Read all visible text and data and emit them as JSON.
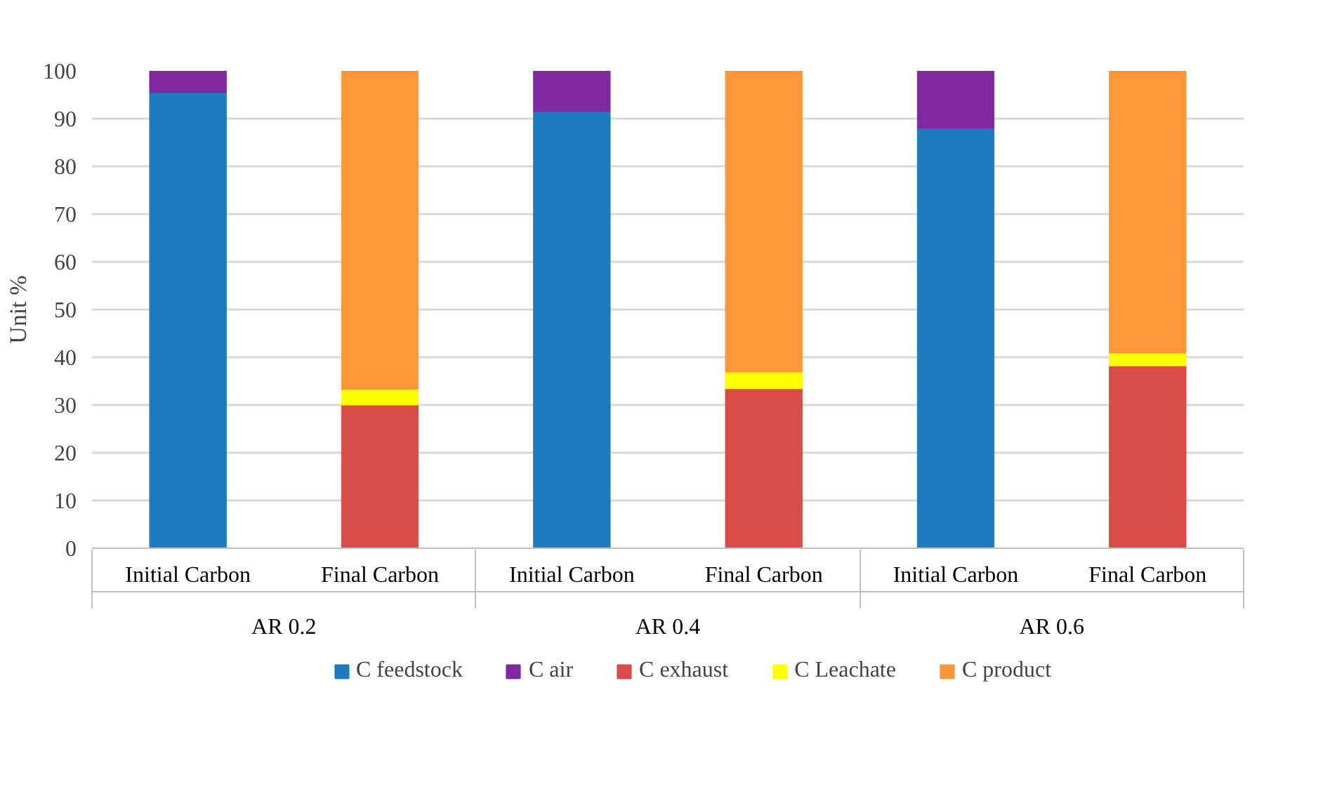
{
  "chart_data": {
    "type": "bar",
    "stacked": true,
    "ylabel": "Unit %",
    "categories": [
      "Initial Carbon",
      "Final Carbon",
      "Initial Carbon",
      "Final Carbon",
      "Initial Carbon",
      "Final Carbon"
    ],
    "annotations": [
      "AR 0.2",
      "AR 0.4",
      "AR 0.6"
    ],
    "series": [
      {
        "name": "C feedstock",
        "color": "#1f7bbf",
        "values": [
          95.5,
          null,
          91.5,
          null,
          88,
          null
        ]
      },
      {
        "name": "C air",
        "color": "#7f28a0",
        "values": [
          4.5,
          null,
          8.5,
          null,
          12,
          null
        ]
      },
      {
        "name": "C exhaust",
        "color": "#d94c47",
        "values": [
          null,
          30,
          null,
          33.4,
          null,
          38.2
        ]
      },
      {
        "name": "C Leachate",
        "color": "#ffff00",
        "values": [
          null,
          3.3,
          null,
          3.5,
          null,
          2.7
        ]
      },
      {
        "name": "C product",
        "color": "#ff963a",
        "values": [
          null,
          66.7,
          null,
          63.1,
          null,
          59.1
        ]
      }
    ],
    "ylim": [
      0,
      100
    ],
    "yticks": [
      0,
      10,
      20,
      30,
      40,
      50,
      60,
      70,
      80,
      90,
      100
    ],
    "grid": "y",
    "legend": "bottom"
  }
}
